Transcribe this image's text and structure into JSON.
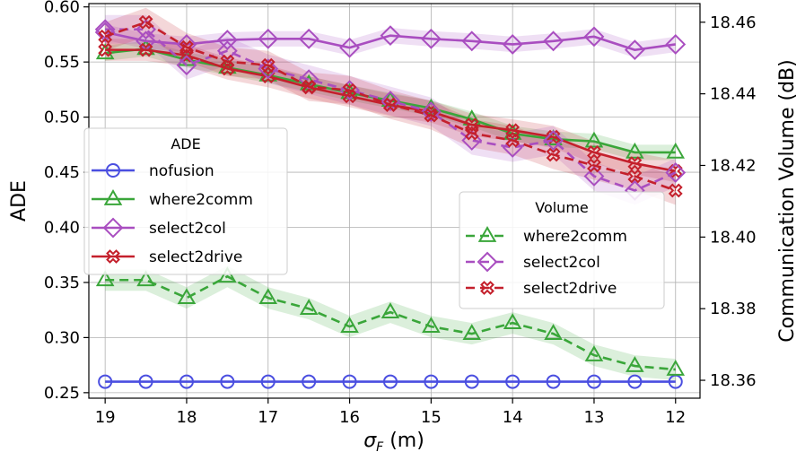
{
  "chart_data": {
    "type": "line",
    "xlabel_main": "σ",
    "xlabel_sub": "F",
    "xlabel_unit": " (m)",
    "ylabel_left": "ADE",
    "ylabel_right": "Communication Volume (dB)",
    "x": [
      19,
      18.5,
      18,
      17.5,
      17,
      16.5,
      16,
      15.5,
      15,
      14.5,
      14,
      13.5,
      13,
      12.5,
      12
    ],
    "xlim": [
      19.2,
      11.7
    ],
    "ylim_left": [
      0.245,
      0.603
    ],
    "ylim_right": [
      18.355,
      18.4652
    ],
    "x_ticks": [
      19,
      18,
      17,
      16,
      15,
      14,
      13,
      12
    ],
    "x_tick_labels": [
      "19",
      "18",
      "17",
      "16",
      "15",
      "14",
      "13",
      "12"
    ],
    "y_ticks_left": [
      0.25,
      0.3,
      0.35,
      0.4,
      0.45,
      0.5,
      0.55,
      0.6
    ],
    "y_tick_labels_left": [
      "0.25",
      "0.30",
      "0.35",
      "0.40",
      "0.45",
      "0.50",
      "0.55",
      "0.60"
    ],
    "y_ticks_right": [
      18.36,
      18.38,
      18.4,
      18.42,
      18.44,
      18.46
    ],
    "y_tick_labels_right": [
      "18.36",
      "18.38",
      "18.40",
      "18.42",
      "18.44",
      "18.46"
    ],
    "grid": true,
    "legend_ade": {
      "title": "ADE",
      "placement": "center-left",
      "entries": [
        "nofusion",
        "where2comm",
        "select2col",
        "select2drive"
      ]
    },
    "legend_volume": {
      "title": "Volume",
      "placement": "center-right",
      "entries": [
        "where2comm",
        "select2col",
        "select2drive"
      ]
    },
    "series": [
      {
        "name": "nofusion",
        "group": "ADE",
        "axis": "left",
        "color": "#4a4ee0",
        "marker": "circle",
        "dash": false,
        "values": [
          0.26,
          0.26,
          0.26,
          0.26,
          0.26,
          0.26,
          0.26,
          0.26,
          0.26,
          0.26,
          0.26,
          0.26,
          0.26,
          0.26,
          0.26
        ]
      },
      {
        "name": "where2comm",
        "group": "ADE",
        "axis": "left",
        "color": "#3aa63a",
        "marker": "triangle",
        "dash": false,
        "values": [
          0.558,
          0.562,
          0.552,
          0.545,
          0.538,
          0.53,
          0.522,
          0.515,
          0.508,
          0.498,
          0.485,
          0.48,
          0.478,
          0.468,
          0.468
        ],
        "band": 0.007
      },
      {
        "name": "select2col",
        "group": "ADE",
        "axis": "left",
        "color": "#a94ec0",
        "marker": "diamond",
        "dash": false,
        "values": [
          0.577,
          0.569,
          0.566,
          0.57,
          0.571,
          0.571,
          0.563,
          0.574,
          0.571,
          0.569,
          0.566,
          0.569,
          0.573,
          0.561,
          0.566
        ],
        "band": 0.007
      },
      {
        "name": "select2drive",
        "group": "ADE",
        "axis": "left",
        "color": "#c4202c",
        "marker": "x",
        "dash": false,
        "values": [
          0.561,
          0.561,
          0.556,
          0.544,
          0.537,
          0.527,
          0.519,
          0.511,
          0.505,
          0.493,
          0.488,
          0.482,
          0.468,
          0.458,
          0.451
        ],
        "band": 0.01
      },
      {
        "name": "where2comm",
        "group": "Volume",
        "axis": "right",
        "color": "#3aa63a",
        "marker": "triangle",
        "dash": true,
        "values": [
          18.388,
          18.388,
          18.383,
          18.389,
          18.383,
          18.38,
          18.375,
          18.379,
          18.375,
          18.373,
          18.376,
          18.373,
          18.367,
          18.364,
          18.363
        ],
        "band": 0.003
      },
      {
        "name": "select2col",
        "group": "Volume",
        "axis": "right",
        "color": "#a94ec0",
        "marker": "diamond",
        "dash": true,
        "values": [
          18.458,
          18.458,
          18.448,
          18.452,
          18.447,
          18.444,
          18.441,
          18.438,
          18.435,
          18.427,
          18.425,
          18.427,
          18.417,
          18.413,
          18.418
        ],
        "band": 0.004
      },
      {
        "name": "select2drive",
        "group": "Volume",
        "axis": "right",
        "color": "#c4202c",
        "marker": "x",
        "dash": true,
        "values": [
          18.456,
          18.46,
          18.453,
          18.449,
          18.448,
          18.442,
          18.441,
          18.437,
          18.434,
          18.429,
          18.427,
          18.423,
          18.42,
          18.417,
          18.413
        ],
        "band": 0.004
      }
    ]
  }
}
